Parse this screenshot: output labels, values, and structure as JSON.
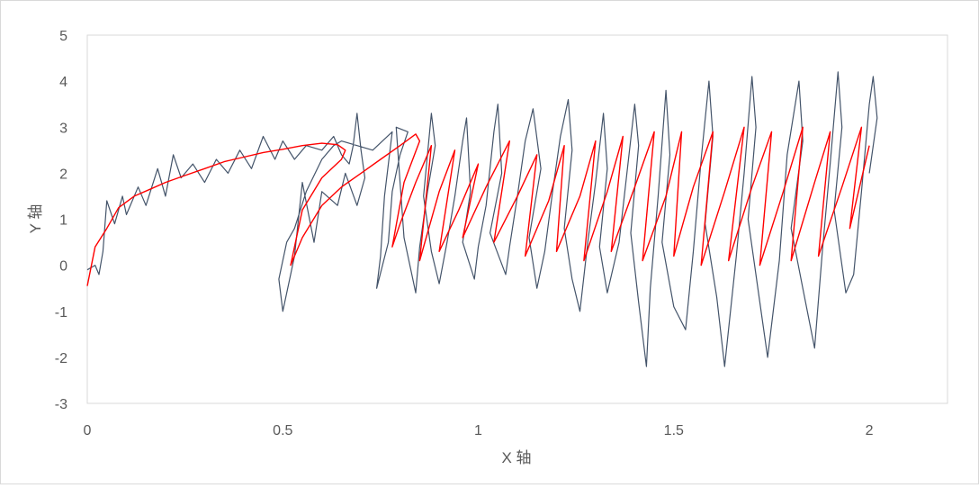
{
  "chart_data": {
    "type": "scatter",
    "title": "",
    "xlabel": "X 轴",
    "ylabel": "Y 轴",
    "xlim": [
      0,
      2.2
    ],
    "ylim": [
      -3,
      5
    ],
    "x_ticks": [
      "0",
      "0.5",
      "1",
      "1.5",
      "2"
    ],
    "y_ticks": [
      "5",
      "4",
      "3",
      "2",
      "1",
      "0",
      "-1",
      "-2",
      "-3"
    ],
    "grid": false,
    "legend": "none",
    "series": [
      {
        "style": "lines",
        "color": "#44546a",
        "points": [
          [
            0.0,
            -0.1
          ],
          [
            0.02,
            0.0
          ],
          [
            0.03,
            -0.2
          ],
          [
            0.04,
            0.3
          ],
          [
            0.05,
            1.4
          ],
          [
            0.07,
            0.9
          ],
          [
            0.09,
            1.5
          ],
          [
            0.1,
            1.1
          ],
          [
            0.13,
            1.7
          ],
          [
            0.15,
            1.3
          ],
          [
            0.18,
            2.1
          ],
          [
            0.2,
            1.5
          ],
          [
            0.22,
            2.4
          ],
          [
            0.24,
            1.9
          ],
          [
            0.27,
            2.2
          ],
          [
            0.3,
            1.8
          ],
          [
            0.33,
            2.3
          ],
          [
            0.36,
            2.0
          ],
          [
            0.39,
            2.5
          ],
          [
            0.42,
            2.1
          ],
          [
            0.45,
            2.8
          ],
          [
            0.48,
            2.3
          ],
          [
            0.5,
            2.7
          ],
          [
            0.53,
            2.3
          ],
          [
            0.56,
            2.6
          ],
          [
            0.6,
            2.5
          ],
          [
            0.63,
            2.8
          ],
          [
            0.65,
            2.4
          ],
          [
            0.67,
            2.2
          ],
          [
            0.68,
            2.6
          ],
          [
            0.69,
            3.3
          ],
          [
            0.7,
            2.5
          ],
          [
            0.71,
            1.9
          ],
          [
            0.69,
            1.3
          ],
          [
            0.66,
            2.0
          ],
          [
            0.64,
            1.3
          ],
          [
            0.6,
            1.6
          ],
          [
            0.58,
            0.5
          ],
          [
            0.55,
            1.8
          ],
          [
            0.53,
            0.2
          ],
          [
            0.52,
            -0.2
          ],
          [
            0.5,
            -1.0
          ],
          [
            0.49,
            -0.3
          ],
          [
            0.51,
            0.5
          ],
          [
            0.53,
            0.8
          ],
          [
            0.56,
            1.6
          ],
          [
            0.6,
            2.3
          ],
          [
            0.63,
            2.6
          ],
          [
            0.65,
            2.7
          ],
          [
            0.73,
            2.5
          ],
          [
            0.78,
            2.9
          ],
          [
            0.76,
            1.5
          ],
          [
            0.75,
            0.2
          ],
          [
            0.74,
            -0.5
          ],
          [
            0.77,
            0.5
          ],
          [
            0.78,
            1.6
          ],
          [
            0.8,
            2.4
          ],
          [
            0.82,
            2.9
          ],
          [
            0.79,
            3.0
          ],
          [
            0.8,
            1.8
          ],
          [
            0.81,
            0.6
          ],
          [
            0.84,
            -0.6
          ],
          [
            0.85,
            0.4
          ],
          [
            0.87,
            1.6
          ],
          [
            0.89,
            2.6
          ],
          [
            0.88,
            3.3
          ],
          [
            0.86,
            1.5
          ],
          [
            0.88,
            0.3
          ],
          [
            0.9,
            -0.4
          ],
          [
            0.92,
            0.5
          ],
          [
            0.94,
            1.5
          ],
          [
            0.96,
            2.7
          ],
          [
            0.97,
            3.2
          ],
          [
            0.98,
            1.6
          ],
          [
            0.96,
            0.5
          ],
          [
            0.99,
            -0.3
          ],
          [
            1.0,
            0.4
          ],
          [
            1.02,
            1.3
          ],
          [
            1.04,
            2.9
          ],
          [
            1.05,
            3.5
          ],
          [
            1.06,
            2.0
          ],
          [
            1.03,
            0.7
          ],
          [
            1.07,
            -0.2
          ],
          [
            1.08,
            0.4
          ],
          [
            1.1,
            1.5
          ],
          [
            1.12,
            2.7
          ],
          [
            1.14,
            3.4
          ],
          [
            1.16,
            2.1
          ],
          [
            1.13,
            0.6
          ],
          [
            1.15,
            -0.5
          ],
          [
            1.17,
            0.3
          ],
          [
            1.19,
            1.6
          ],
          [
            1.21,
            2.8
          ],
          [
            1.23,
            3.6
          ],
          [
            1.24,
            2.5
          ],
          [
            1.22,
            0.8
          ],
          [
            1.24,
            -0.3
          ],
          [
            1.26,
            -1.0
          ],
          [
            1.28,
            0.5
          ],
          [
            1.3,
            1.8
          ],
          [
            1.32,
            3.3
          ],
          [
            1.33,
            2.1
          ],
          [
            1.31,
            0.4
          ],
          [
            1.33,
            -0.6
          ],
          [
            1.36,
            0.5
          ],
          [
            1.38,
            2.0
          ],
          [
            1.4,
            3.5
          ],
          [
            1.41,
            2.6
          ],
          [
            1.39,
            0.7
          ],
          [
            1.41,
            -0.8
          ],
          [
            1.43,
            -2.2
          ],
          [
            1.44,
            -0.5
          ],
          [
            1.46,
            1.5
          ],
          [
            1.48,
            3.8
          ],
          [
            1.49,
            2.4
          ],
          [
            1.47,
            0.5
          ],
          [
            1.5,
            -0.9
          ],
          [
            1.53,
            -1.4
          ],
          [
            1.55,
            0.3
          ],
          [
            1.57,
            2.3
          ],
          [
            1.59,
            4.0
          ],
          [
            1.6,
            2.8
          ],
          [
            1.58,
            0.9
          ],
          [
            1.61,
            -0.7
          ],
          [
            1.63,
            -2.2
          ],
          [
            1.66,
            0.2
          ],
          [
            1.68,
            2.0
          ],
          [
            1.7,
            4.1
          ],
          [
            1.71,
            3.0
          ],
          [
            1.69,
            1.0
          ],
          [
            1.72,
            -0.8
          ],
          [
            1.74,
            -2.0
          ],
          [
            1.77,
            0.1
          ],
          [
            1.79,
            2.4
          ],
          [
            1.82,
            4.0
          ],
          [
            1.83,
            2.7
          ],
          [
            1.8,
            0.8
          ],
          [
            1.83,
            -0.5
          ],
          [
            1.86,
            -1.8
          ],
          [
            1.88,
            0.3
          ],
          [
            1.9,
            2.2
          ],
          [
            1.92,
            4.2
          ],
          [
            1.93,
            3.0
          ],
          [
            1.91,
            1.2
          ],
          [
            1.94,
            -0.6
          ],
          [
            1.96,
            -0.2
          ],
          [
            1.98,
            1.6
          ],
          [
            2.0,
            3.5
          ],
          [
            2.01,
            4.1
          ],
          [
            2.02,
            3.2
          ],
          [
            2.0,
            2.0
          ]
        ]
      },
      {
        "style": "lines",
        "color": "#ff0000",
        "points": [
          [
            0.0,
            -0.45
          ],
          [
            0.02,
            0.4
          ],
          [
            0.05,
            0.8
          ],
          [
            0.08,
            1.25
          ],
          [
            0.12,
            1.5
          ],
          [
            0.16,
            1.65
          ],
          [
            0.2,
            1.8
          ],
          [
            0.25,
            1.95
          ],
          [
            0.3,
            2.1
          ],
          [
            0.35,
            2.25
          ],
          [
            0.4,
            2.35
          ],
          [
            0.45,
            2.45
          ],
          [
            0.5,
            2.52
          ],
          [
            0.55,
            2.6
          ],
          [
            0.6,
            2.65
          ],
          [
            0.64,
            2.62
          ],
          [
            0.66,
            2.5
          ],
          [
            0.65,
            2.3
          ],
          [
            0.6,
            1.9
          ],
          [
            0.55,
            1.2
          ],
          [
            0.53,
            0.4
          ],
          [
            0.52,
            0.0
          ],
          [
            0.55,
            0.6
          ],
          [
            0.6,
            1.3
          ],
          [
            0.65,
            1.7
          ],
          [
            0.7,
            2.0
          ],
          [
            0.75,
            2.3
          ],
          [
            0.8,
            2.6
          ],
          [
            0.84,
            2.85
          ],
          [
            0.85,
            2.7
          ],
          [
            0.81,
            1.8
          ],
          [
            0.78,
            0.4
          ],
          [
            0.8,
            0.9
          ],
          [
            0.84,
            1.8
          ],
          [
            0.88,
            2.6
          ],
          [
            0.85,
            0.1
          ],
          [
            0.9,
            1.6
          ],
          [
            0.94,
            2.5
          ],
          [
            0.9,
            0.3
          ],
          [
            0.95,
            1.2
          ],
          [
            1.0,
            2.2
          ],
          [
            0.96,
            0.6
          ],
          [
            1.02,
            1.7
          ],
          [
            1.08,
            2.7
          ],
          [
            1.04,
            0.5
          ],
          [
            1.1,
            1.5
          ],
          [
            1.15,
            2.4
          ],
          [
            1.12,
            0.2
          ],
          [
            1.18,
            1.4
          ],
          [
            1.22,
            2.6
          ],
          [
            1.2,
            0.3
          ],
          [
            1.26,
            1.5
          ],
          [
            1.3,
            2.7
          ],
          [
            1.27,
            0.1
          ],
          [
            1.33,
            1.6
          ],
          [
            1.37,
            2.8
          ],
          [
            1.34,
            0.3
          ],
          [
            1.4,
            1.7
          ],
          [
            1.45,
            2.9
          ],
          [
            1.42,
            0.1
          ],
          [
            1.48,
            1.5
          ],
          [
            1.52,
            2.9
          ],
          [
            1.5,
            0.2
          ],
          [
            1.55,
            1.7
          ],
          [
            1.6,
            2.9
          ],
          [
            1.57,
            0.0
          ],
          [
            1.63,
            1.6
          ],
          [
            1.68,
            3.0
          ],
          [
            1.64,
            0.1
          ],
          [
            1.7,
            1.7
          ],
          [
            1.75,
            2.9
          ],
          [
            1.72,
            0.0
          ],
          [
            1.78,
            1.6
          ],
          [
            1.83,
            3.0
          ],
          [
            1.8,
            0.1
          ],
          [
            1.86,
            1.8
          ],
          [
            1.9,
            2.9
          ],
          [
            1.87,
            0.2
          ],
          [
            1.93,
            1.7
          ],
          [
            1.98,
            3.0
          ],
          [
            1.95,
            0.8
          ],
          [
            2.0,
            2.6
          ]
        ]
      }
    ]
  }
}
